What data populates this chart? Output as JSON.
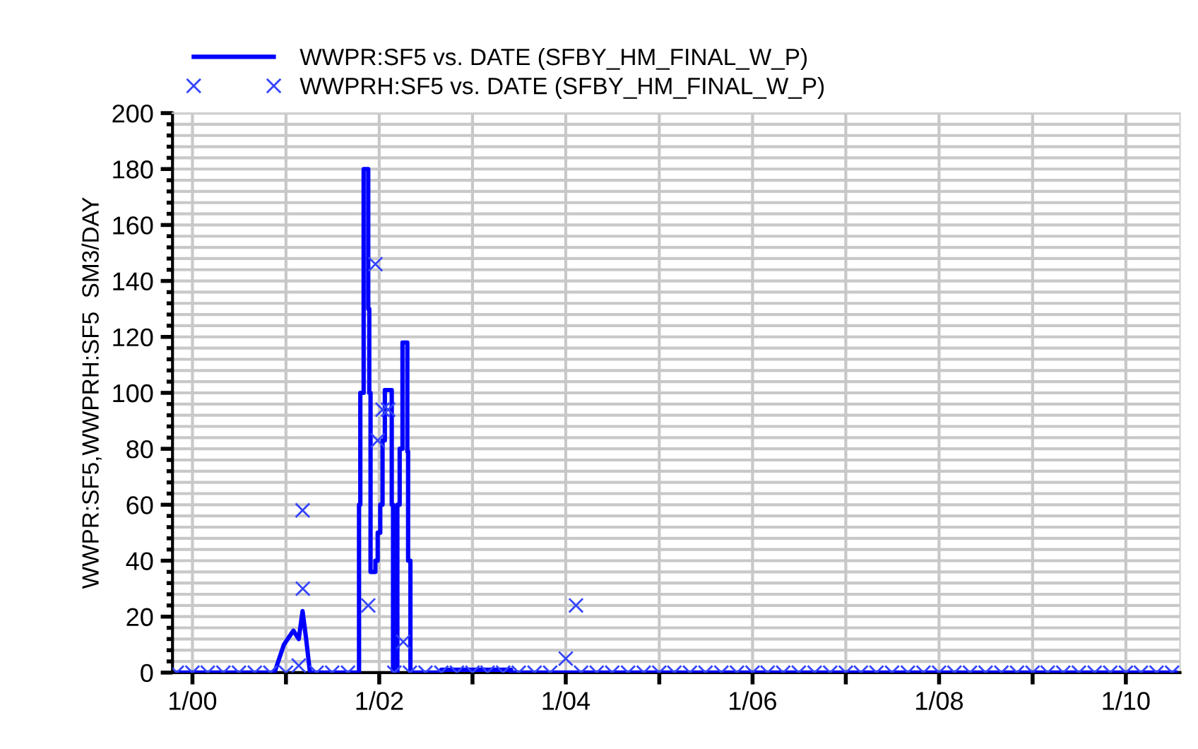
{
  "chart_data": {
    "type": "line",
    "ylabel": "WWPR:SF5,WWPRH:SF5  SM3/DAY",
    "xlim": [
      "1999-10-15",
      "2010-08-01"
    ],
    "ylim": [
      0,
      200
    ],
    "xticks": [
      {
        "value": "2000-01-01",
        "label": "1/00"
      },
      {
        "value": "2001-01-01",
        "label": null
      },
      {
        "value": "2002-01-01",
        "label": "1/02"
      },
      {
        "value": "2003-01-01",
        "label": null
      },
      {
        "value": "2004-01-01",
        "label": "1/04"
      },
      {
        "value": "2005-01-01",
        "label": null
      },
      {
        "value": "2006-01-01",
        "label": "1/06"
      },
      {
        "value": "2007-01-01",
        "label": null
      },
      {
        "value": "2008-01-01",
        "label": "1/08"
      },
      {
        "value": "2009-01-01",
        "label": null
      },
      {
        "value": "2010-01-01",
        "label": "1/10"
      }
    ],
    "yticks": [
      0,
      {
        "value": 4,
        "label": null
      },
      {
        "value": 8,
        "label": null
      },
      {
        "value": 12,
        "label": null
      },
      {
        "value": 16,
        "label": null
      },
      20,
      {
        "value": 24,
        "label": null
      },
      {
        "value": 28,
        "label": null
      },
      {
        "value": 32,
        "label": null
      },
      {
        "value": 36,
        "label": null
      },
      40,
      {
        "value": 44,
        "label": null
      },
      {
        "value": 48,
        "label": null
      },
      {
        "value": 52,
        "label": null
      },
      {
        "value": 56,
        "label": null
      },
      60,
      {
        "value": 64,
        "label": null
      },
      {
        "value": 68,
        "label": null
      },
      {
        "value": 72,
        "label": null
      },
      {
        "value": 76,
        "label": null
      },
      80,
      {
        "value": 84,
        "label": null
      },
      {
        "value": 88,
        "label": null
      },
      {
        "value": 92,
        "label": null
      },
      {
        "value": 96,
        "label": null
      },
      100,
      {
        "value": 104,
        "label": null
      },
      {
        "value": 108,
        "label": null
      },
      {
        "value": 112,
        "label": null
      },
      {
        "value": 116,
        "label": null
      },
      120,
      {
        "value": 124,
        "label": null
      },
      {
        "value": 128,
        "label": null
      },
      {
        "value": 132,
        "label": null
      },
      {
        "value": 136,
        "label": null
      },
      140,
      {
        "value": 144,
        "label": null
      },
      {
        "value": 148,
        "label": null
      },
      {
        "value": 152,
        "label": null
      },
      {
        "value": 156,
        "label": null
      },
      160,
      {
        "value": 164,
        "label": null
      },
      {
        "value": 168,
        "label": null
      },
      {
        "value": 172,
        "label": null
      },
      {
        "value": 176,
        "label": null
      },
      180,
      {
        "value": 184,
        "label": null
      },
      {
        "value": 188,
        "label": null
      },
      {
        "value": 192,
        "label": null
      },
      {
        "value": 196,
        "label": null
      },
      200
    ],
    "grid": true,
    "legend": "top left",
    "series": [
      {
        "name": "WWPR:SF5 vs. DATE (SFBY_HM_FINAL_W_P)",
        "color": "#0000ff",
        "marker": "none",
        "line_style": "solid",
        "x": [
          "1999-11-01",
          "2000-11-17",
          "2000-12-24",
          "2001-01-30",
          "2001-02-20",
          "2001-03-07",
          "2001-03-21",
          "2001-04-05",
          "2001-10-14",
          "2001-10-14",
          "2001-10-19",
          "2001-10-19",
          "2001-11-01",
          "2001-11-01",
          "2001-11-19",
          "2001-11-19",
          "2001-11-23",
          "2001-11-23",
          "2001-11-28",
          "2001-11-28",
          "2001-12-17",
          "2001-12-17",
          "2001-12-26",
          "2001-12-26",
          "2002-01-05",
          "2002-01-05",
          "2002-01-14",
          "2002-01-14",
          "2002-01-23",
          "2002-01-23",
          "2002-02-19",
          "2002-02-19",
          "2002-02-24",
          "2002-02-24",
          "2002-03-13",
          "2002-03-13",
          "2002-03-22",
          "2002-03-22",
          "2002-04-02",
          "2002-04-02",
          "2002-04-21",
          "2002-04-21",
          "2002-04-24",
          "2002-04-24",
          "2002-05-03",
          "2002-05-03",
          "2002-09-01",
          "2002-09-01",
          "2003-06-01",
          "2003-06-01",
          "2010-07-15"
        ],
        "values": [
          0,
          0,
          10,
          15,
          12,
          22,
          12,
          0,
          0,
          60,
          60,
          100,
          100,
          180,
          180,
          130,
          130,
          100,
          100,
          36,
          36,
          40,
          40,
          50,
          50,
          60,
          60,
          83,
          83,
          101,
          101,
          60,
          60,
          0,
          0,
          60,
          60,
          80,
          80,
          118,
          118,
          79,
          79,
          40,
          40,
          0,
          0,
          1,
          1,
          0,
          0
        ]
      },
      {
        "name": "WWPRH:SF5 vs. DATE (SFBY_HM_FINAL_W_P)",
        "type": "scatter",
        "color": "#3344ff",
        "marker": "cross",
        "x": [
          "1999-11-01",
          "2000-01-01",
          "2000-03-01",
          "2000-05-01",
          "2000-07-01",
          "2000-09-01",
          "2000-11-01",
          "2001-01-01",
          "2001-02-20",
          "2001-03-07",
          "2001-03-08",
          "2001-05-01",
          "2001-07-01",
          "2001-09-01",
          "2001-11-19",
          "2001-12-17",
          "2001-12-26",
          "2002-01-14",
          "2002-02-05",
          "2002-03-01",
          "2002-04-05",
          "2002-05-01",
          "2002-07-01",
          "2002-09-01",
          "2002-11-01",
          "2003-01-01",
          "2003-03-01",
          "2003-05-01",
          "2003-07-01",
          "2003-09-01",
          "2003-11-01",
          "2004-01-01",
          "2004-02-10",
          "2004-03-01",
          "2004-05-01",
          "2004-07-01",
          "2004-09-01",
          "2004-11-01",
          "2005-01-01",
          "2005-03-01",
          "2005-05-01",
          "2005-07-01",
          "2005-09-01",
          "2005-11-01",
          "2006-01-01",
          "2006-03-01",
          "2006-05-01",
          "2006-07-01",
          "2006-09-01",
          "2006-11-01",
          "2007-01-01",
          "2007-03-01",
          "2007-05-01",
          "2007-07-01",
          "2007-09-01",
          "2007-11-01",
          "2008-01-01",
          "2008-03-01",
          "2008-05-01",
          "2008-07-01",
          "2008-09-01",
          "2008-11-01",
          "2009-01-01",
          "2009-03-01",
          "2009-05-01",
          "2009-07-01",
          "2009-09-01",
          "2009-11-01",
          "2010-01-01",
          "2010-03-01",
          "2010-05-01",
          "2010-07-01"
        ],
        "values": [
          0,
          0,
          0,
          0,
          0,
          0,
          0,
          0,
          2.5,
          58,
          30,
          0,
          0,
          0,
          24,
          146,
          83,
          94,
          94,
          0,
          11,
          0,
          0,
          0,
          0,
          0,
          0,
          0,
          0,
          0,
          0,
          5,
          24,
          0,
          0,
          0,
          0,
          0,
          0,
          0,
          0,
          0,
          0,
          0,
          0,
          0,
          0,
          0,
          0,
          0,
          0,
          0,
          0,
          0,
          0,
          0,
          0,
          0,
          0,
          0,
          0,
          0,
          0,
          0,
          0,
          0,
          0,
          0,
          0,
          0,
          0,
          0
        ]
      }
    ]
  }
}
